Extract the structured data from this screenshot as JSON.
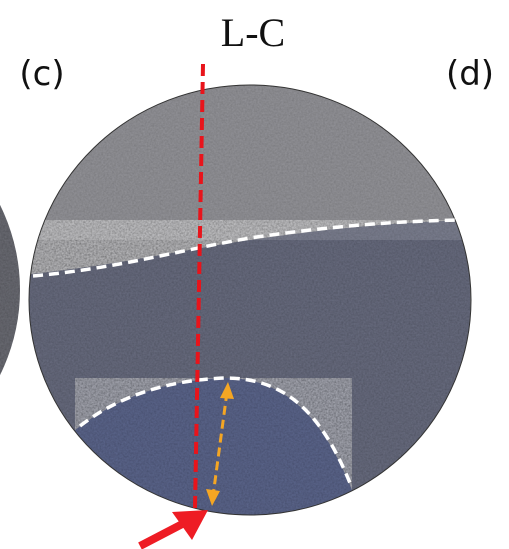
{
  "labels": {
    "orientation": "L-C",
    "left_panel": "(c)",
    "right_panel": "(d)"
  }
}
